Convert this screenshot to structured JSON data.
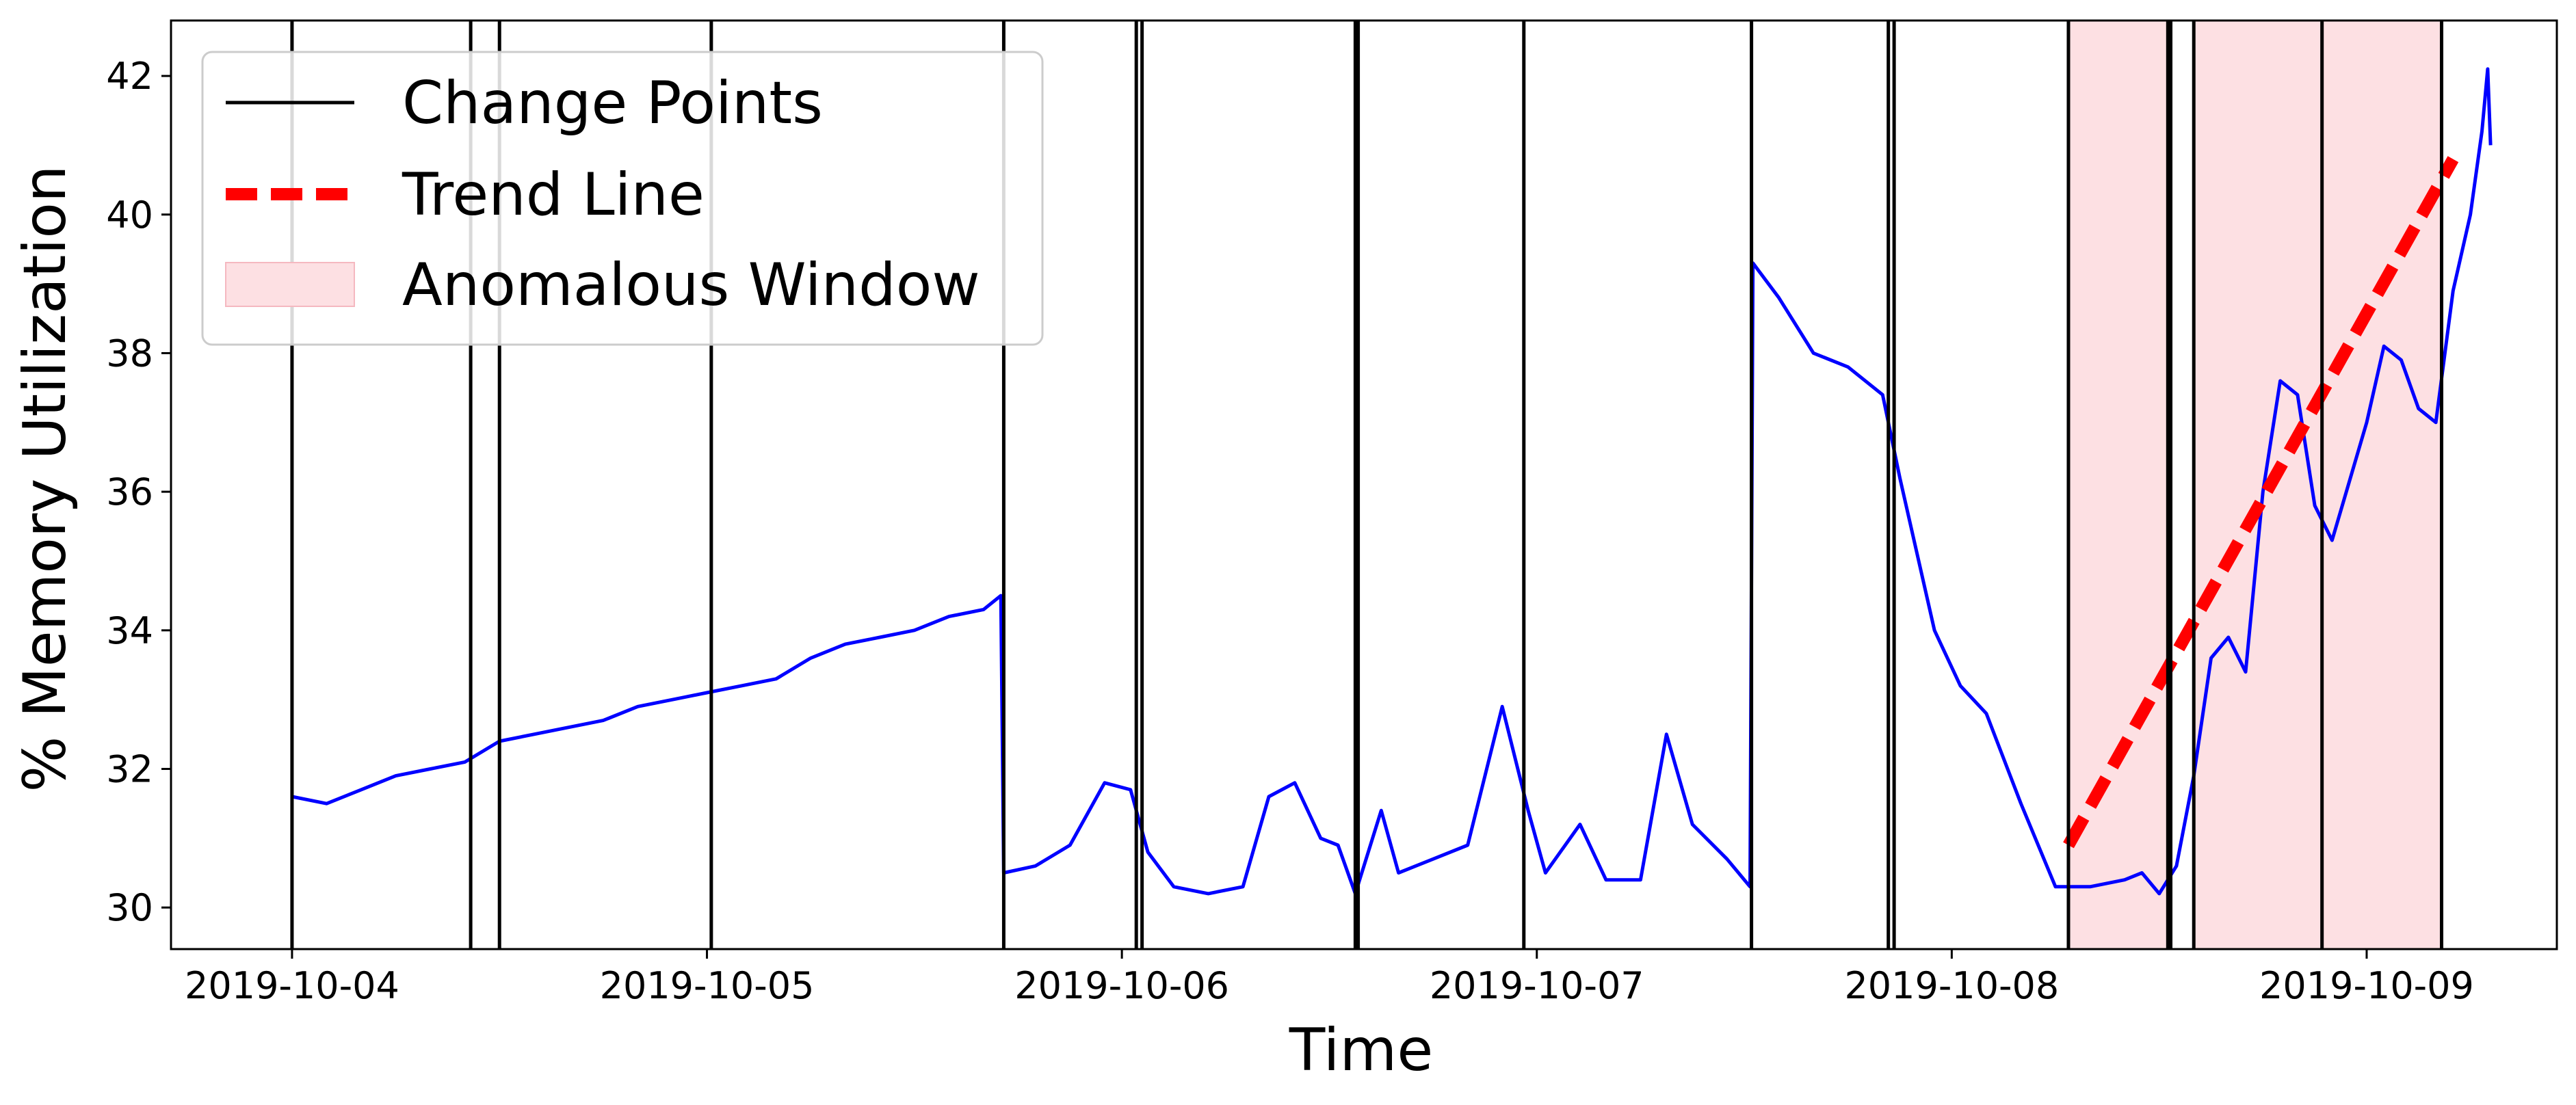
{
  "chart_data": {
    "type": "line",
    "title": "",
    "xlabel": "Time",
    "ylabel": "% Memory Utilization",
    "xlim": [
      "2019-10-03T17:00:00",
      "2019-10-09T11:00:00"
    ],
    "ylim": [
      29.4,
      42.8
    ],
    "x_ticks": [
      "2019-10-04",
      "2019-10-05",
      "2019-10-06",
      "2019-10-07",
      "2019-10-08",
      "2019-10-09"
    ],
    "y_ticks": [
      30,
      32,
      34,
      36,
      38,
      40,
      42
    ],
    "grid": false,
    "legend_position": "top-left",
    "legend": {
      "change_points": "Change Points",
      "trend_line": "Trend Line",
      "anomalous_window": "Anomalous Window"
    },
    "colors": {
      "series": "#0000ff",
      "change_points": "#000000",
      "trend_line": "#ff0000",
      "anomalous_window": "#fde0e3"
    },
    "series": [
      {
        "points": [
          [
            "2019-10-04T00:00:00",
            31.6
          ],
          [
            "2019-10-04T02:00:00",
            31.5
          ],
          [
            "2019-10-04T04:00:00",
            31.7
          ],
          [
            "2019-10-04T06:00:00",
            31.9
          ],
          [
            "2019-10-04T08:00:00",
            32.0
          ],
          [
            "2019-10-04T10:00:00",
            32.1
          ],
          [
            "2019-10-04T12:00:00",
            32.4
          ],
          [
            "2019-10-04T14:00:00",
            32.5
          ],
          [
            "2019-10-04T16:00:00",
            32.6
          ],
          [
            "2019-10-04T18:00:00",
            32.7
          ],
          [
            "2019-10-04T20:00:00",
            32.9
          ],
          [
            "2019-10-04T22:00:00",
            33.0
          ],
          [
            "2019-10-05T00:00:00",
            33.1
          ],
          [
            "2019-10-05T02:00:00",
            33.2
          ],
          [
            "2019-10-05T04:00:00",
            33.3
          ],
          [
            "2019-10-05T06:00:00",
            33.6
          ],
          [
            "2019-10-05T08:00:00",
            33.8
          ],
          [
            "2019-10-05T10:00:00",
            33.9
          ],
          [
            "2019-10-05T12:00:00",
            34.0
          ],
          [
            "2019-10-05T14:00:00",
            34.2
          ],
          [
            "2019-10-05T16:00:00",
            34.3
          ],
          [
            "2019-10-05T17:00:00",
            34.5
          ],
          [
            "2019-10-05T17:10:00",
            30.5
          ],
          [
            "2019-10-05T19:00:00",
            30.6
          ],
          [
            "2019-10-05T21:00:00",
            30.9
          ],
          [
            "2019-10-05T23:00:00",
            31.8
          ],
          [
            "2019-10-06T00:30:00",
            31.7
          ],
          [
            "2019-10-06T01:30:00",
            30.8
          ],
          [
            "2019-10-06T03:00:00",
            30.3
          ],
          [
            "2019-10-06T05:00:00",
            30.2
          ],
          [
            "2019-10-06T07:00:00",
            30.3
          ],
          [
            "2019-10-06T08:30:00",
            31.6
          ],
          [
            "2019-10-06T10:00:00",
            31.8
          ],
          [
            "2019-10-06T11:30:00",
            31.0
          ],
          [
            "2019-10-06T12:30:00",
            30.9
          ],
          [
            "2019-10-06T13:30:00",
            30.2
          ],
          [
            "2019-10-06T15:00:00",
            31.4
          ],
          [
            "2019-10-06T16:00:00",
            30.5
          ],
          [
            "2019-10-06T18:00:00",
            30.7
          ],
          [
            "2019-10-06T20:00:00",
            30.9
          ],
          [
            "2019-10-06T22:00:00",
            32.9
          ],
          [
            "2019-10-06T23:30:00",
            31.4
          ],
          [
            "2019-10-07T00:30:00",
            30.5
          ],
          [
            "2019-10-07T02:30:00",
            31.2
          ],
          [
            "2019-10-07T04:00:00",
            30.4
          ],
          [
            "2019-10-07T06:00:00",
            30.4
          ],
          [
            "2019-10-07T07:30:00",
            32.5
          ],
          [
            "2019-10-07T09:00:00",
            31.2
          ],
          [
            "2019-10-07T11:00:00",
            30.7
          ],
          [
            "2019-10-07T12:20:00",
            30.3
          ],
          [
            "2019-10-07T12:30:00",
            39.3
          ],
          [
            "2019-10-07T14:00:00",
            38.8
          ],
          [
            "2019-10-07T16:00:00",
            38.0
          ],
          [
            "2019-10-07T18:00:00",
            37.8
          ],
          [
            "2019-10-07T20:00:00",
            37.4
          ],
          [
            "2019-10-07T21:00:00",
            36.2
          ],
          [
            "2019-10-07T23:00:00",
            34.0
          ],
          [
            "2019-10-08T00:30:00",
            33.2
          ],
          [
            "2019-10-08T02:00:00",
            32.8
          ],
          [
            "2019-10-08T04:00:00",
            31.5
          ],
          [
            "2019-10-08T06:00:00",
            30.3
          ],
          [
            "2019-10-08T08:00:00",
            30.3
          ],
          [
            "2019-10-08T10:00:00",
            30.4
          ],
          [
            "2019-10-08T11:00:00",
            30.5
          ],
          [
            "2019-10-08T12:00:00",
            30.2
          ],
          [
            "2019-10-08T13:00:00",
            30.6
          ],
          [
            "2019-10-08T14:00:00",
            31.9
          ],
          [
            "2019-10-08T15:00:00",
            33.6
          ],
          [
            "2019-10-08T16:00:00",
            33.9
          ],
          [
            "2019-10-08T17:00:00",
            33.4
          ],
          [
            "2019-10-08T18:00:00",
            36.0
          ],
          [
            "2019-10-08T19:00:00",
            37.6
          ],
          [
            "2019-10-08T20:00:00",
            37.4
          ],
          [
            "2019-10-08T21:00:00",
            35.8
          ],
          [
            "2019-10-08T22:00:00",
            35.3
          ],
          [
            "2019-10-09T00:00:00",
            37.0
          ],
          [
            "2019-10-09T01:00:00",
            38.1
          ],
          [
            "2019-10-09T02:00:00",
            37.9
          ],
          [
            "2019-10-09T03:00:00",
            37.2
          ],
          [
            "2019-10-09T04:00:00",
            37.0
          ],
          [
            "2019-10-09T05:00:00",
            38.9
          ],
          [
            "2019-10-09T06:00:00",
            40.0
          ],
          [
            "2019-10-09T06:40:00",
            41.2
          ],
          [
            "2019-10-09T07:00:00",
            42.1
          ],
          [
            "2019-10-09T07:10:00",
            41.0
          ]
        ]
      }
    ],
    "change_points": [
      "2019-10-04T00:00:00",
      "2019-10-04T10:20:00",
      "2019-10-04T12:00:00",
      "2019-10-05T00:15:00",
      "2019-10-05T17:10:00",
      "2019-10-06T00:50:00",
      "2019-10-06T01:10:00",
      "2019-10-06T13:30:00",
      "2019-10-06T13:40:00",
      "2019-10-06T23:15:00",
      "2019-10-07T12:25:00",
      "2019-10-07T20:20:00",
      "2019-10-07T20:40:00",
      "2019-10-08T06:45:00",
      "2019-10-08T12:30:00",
      "2019-10-08T12:40:00",
      "2019-10-08T14:00:00",
      "2019-10-08T21:25:00",
      "2019-10-09T04:20:00"
    ],
    "trend_line": {
      "start": [
        "2019-10-08T06:45:00",
        30.9
      ],
      "end": [
        "2019-10-09T05:00:00",
        40.8
      ]
    },
    "anomalous_windows": [
      [
        "2019-10-08T06:45:00",
        "2019-10-08T12:30:00"
      ],
      [
        "2019-10-08T14:00:00",
        "2019-10-09T04:20:00"
      ]
    ]
  }
}
